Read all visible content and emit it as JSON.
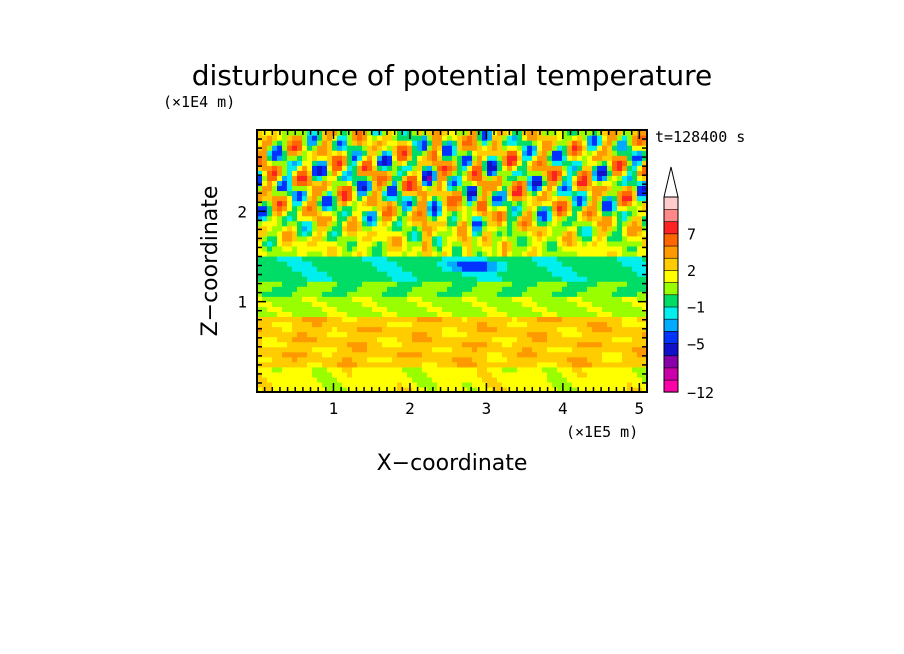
{
  "chart_data": {
    "type": "heatmap",
    "title": "disturbunce of potential temperature",
    "xlabel": "X−coordinate",
    "ylabel": "Z−coordinate",
    "x_unit": "(×1E5 m)",
    "y_unit": "(×1E4 m)",
    "time_label": "t=128400 s",
    "xlim": [
      0,
      5.1
    ],
    "ylim": [
      0,
      2.9
    ],
    "x_ticks": [
      1,
      2,
      3,
      4,
      5
    ],
    "y_ticks": [
      1,
      2
    ],
    "colorbar": {
      "levels": [
        -12,
        -11,
        -9,
        -7,
        -5,
        -3,
        -2,
        -1,
        0,
        1,
        2,
        3,
        5,
        7,
        9,
        11,
        13
      ],
      "colors": [
        "#ff00aa",
        "#cc00aa",
        "#8800aa",
        "#1111cc",
        "#0033ff",
        "#00aaff",
        "#00eeee",
        "#00dd66",
        "#99ff00",
        "#ffff00",
        "#ffcc00",
        "#ff9900",
        "#ff6600",
        "#ff2222",
        "#ff8888",
        "#ffcccc"
      ],
      "tick_labels": [
        "−12",
        "−5",
        "−1",
        "2",
        "7"
      ],
      "extend_max": true
    },
    "zones": [
      {
        "z_range": [
          0,
          0.3
        ],
        "value": 1.5
      },
      {
        "z_range": [
          0.3,
          0.85
        ],
        "value": 2.5
      },
      {
        "z_range": [
          0.85,
          1.05
        ],
        "value": 0.8
      },
      {
        "z_range": [
          1.05,
          1.2
        ],
        "value": 0
      },
      {
        "z_range": [
          1.2,
          1.5
        ],
        "value": -0.7
      },
      {
        "z_range": [
          1.5,
          2.9
        ],
        "value": "wave pattern, -6 to 8"
      }
    ]
  }
}
